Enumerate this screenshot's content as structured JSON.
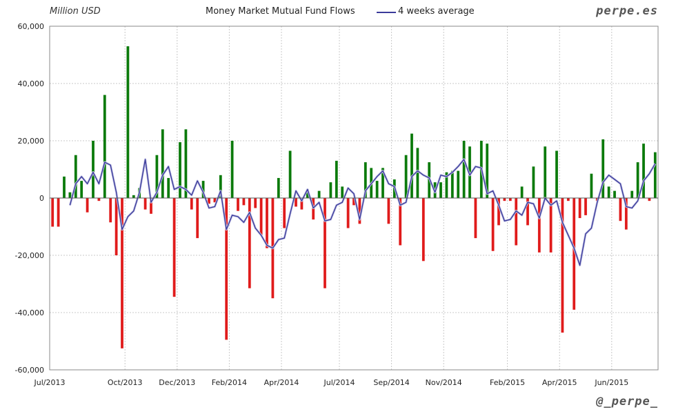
{
  "header": {
    "unit_label": "Million USD",
    "title": "Money Market Mutual Fund Flows",
    "legend_avg": "4 weeks average",
    "brand": "perpe.es",
    "handle": "@_perpe_"
  },
  "colors": {
    "positive": "#0b7a0b",
    "negative": "#e01b1b",
    "average": "#3a3a9a",
    "grid": "#c8c8c8"
  },
  "chart_data": {
    "type": "bar",
    "title": "Money Market Mutual Fund Flows",
    "ylabel": "Million USD",
    "ylim": [
      -60000,
      60000
    ],
    "yticks": [
      60000,
      40000,
      20000,
      0,
      -20000,
      -40000,
      -60000
    ],
    "ytick_labels": [
      "60,000",
      "40,000",
      "20,000",
      "0",
      "-20,000",
      "-40,000",
      "-60,000"
    ],
    "xtick_labels": [
      "Jul/2013",
      "Oct/2013",
      "Dec/2013",
      "Feb/2014",
      "Apr/2014",
      "Jul/2014",
      "Sep/2014",
      "Nov/2014",
      "Feb/2015",
      "Apr/2015",
      "Jun/2015"
    ],
    "xtick_weeks": [
      0,
      13,
      22,
      31,
      40,
      50,
      59,
      68,
      79,
      88,
      97
    ],
    "grid": true,
    "legend": "top-center",
    "series": [
      {
        "type": "bar",
        "values": [
          -10000,
          -10000,
          7500,
          2000,
          15000,
          6000,
          -5000,
          20000,
          -1000,
          36000,
          -8500,
          -20000,
          -52500,
          53000,
          1000,
          3500,
          -4000,
          -5500,
          15000,
          24000,
          7000,
          -34500,
          19500,
          24000,
          -4000,
          -14000,
          6000,
          -2000,
          -1500,
          8000,
          -49500,
          20000,
          -4500,
          -2500,
          -31500,
          -3500,
          -13000,
          -17500,
          -35000,
          7000,
          -10500,
          16500,
          -3000,
          -4000,
          3000,
          -7500,
          2500,
          -31500,
          5500,
          13000,
          4000,
          -10500,
          -2500,
          -9000,
          12500,
          10500,
          6000,
          10500,
          -9000,
          6500,
          -16500,
          15000,
          22500,
          17500,
          -22000,
          12500,
          5500,
          5500,
          9000,
          9500,
          9500,
          20000,
          18000,
          -14000,
          20000,
          19000,
          -18500,
          -9500,
          -1000,
          -1000,
          -16500,
          4000,
          -9500,
          11000,
          -19000,
          18000,
          -19000,
          16500,
          -47000,
          -1000,
          -39000,
          -7000,
          -6000,
          8500,
          -1000,
          20500,
          4000,
          2500,
          -8000,
          -11000,
          2500,
          12500,
          19000,
          -1000,
          16000
        ]
      },
      {
        "type": "line",
        "name": "4 weeks average",
        "values": [
          null,
          null,
          null,
          -2500,
          5000,
          7500,
          5000,
          9000,
          5000,
          12500,
          11500,
          2000,
          -11000,
          -6500,
          -4500,
          2000,
          13500,
          -1500,
          2000,
          8000,
          11000,
          3000,
          4000,
          3000,
          1000,
          6000,
          2000,
          -3500,
          -3000,
          2500,
          -11000,
          -6000,
          -6500,
          -8500,
          -5000,
          -10500,
          -13000,
          -16500,
          -17500,
          -14500,
          -14000,
          -5500,
          2500,
          -1000,
          3000,
          -3500,
          -1500,
          -8000,
          -7500,
          -2500,
          -1500,
          3500,
          1500,
          -7500,
          2500,
          5000,
          7500,
          9500,
          5000,
          4000,
          -2500,
          -1500,
          7500,
          9500,
          8000,
          7000,
          2000,
          8000,
          7500,
          9000,
          11000,
          13500,
          8000,
          11000,
          10500,
          1500,
          2500,
          -2500,
          -8000,
          -7500,
          -4500,
          -6000,
          -1500,
          -2000,
          -7000,
          0,
          -2500,
          -1000,
          -8500,
          -13000,
          -17500,
          -23500,
          -12500,
          -10500,
          -1500,
          5500,
          8000,
          6500,
          5000,
          -3000,
          -3500,
          -1000,
          6000,
          8500,
          12000
        ]
      }
    ]
  }
}
